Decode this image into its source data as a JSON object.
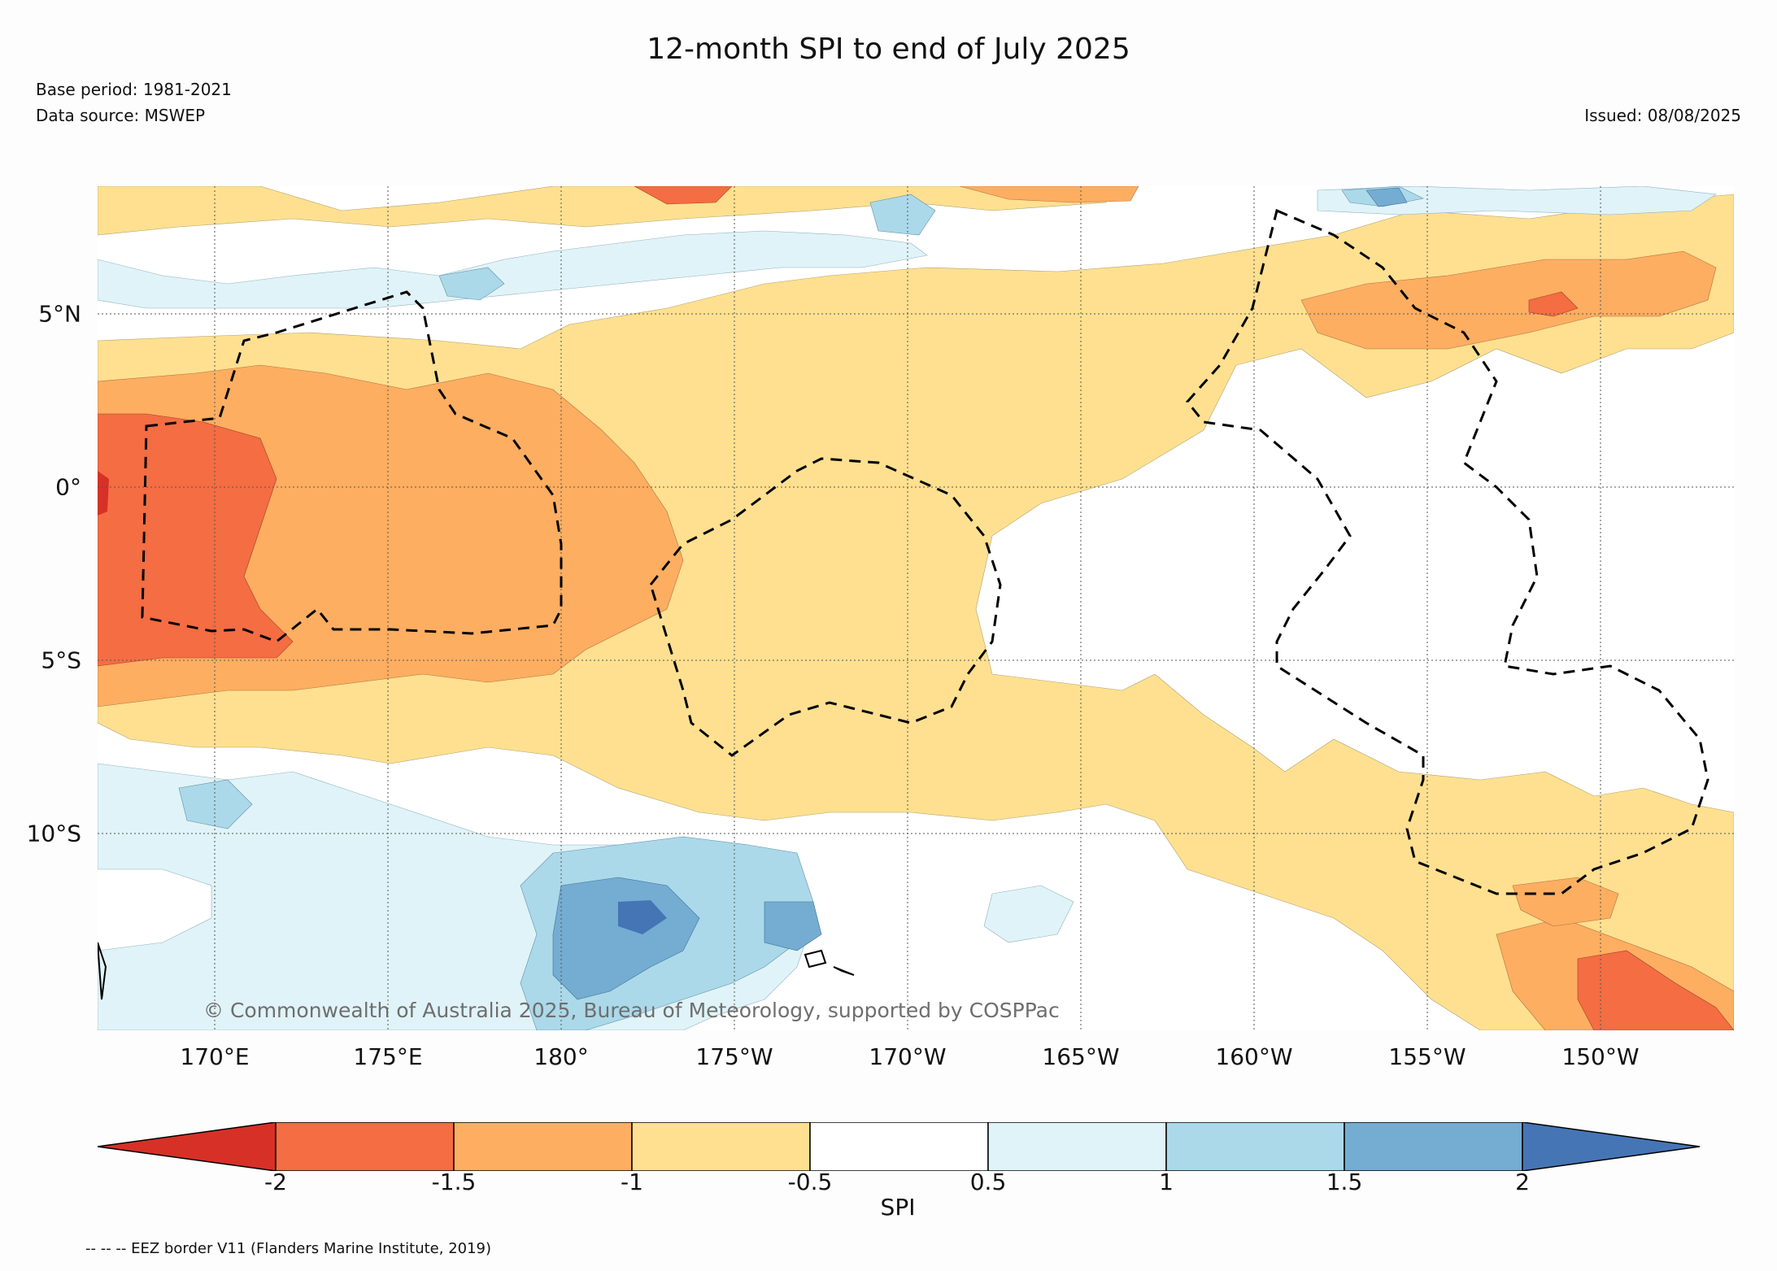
{
  "title": "12-month SPI to end of July 2025",
  "base_period": "Base period: 1981-2021",
  "data_source": "Data source: MSWEP",
  "issued": "Issued: 08/08/2025",
  "copyright": "© Commonwealth of Australia 2025, Bureau of Meteorology, supported by COSPPac",
  "footnote": "-- -- -- EEZ border V11 (Flanders Marine Institute, 2019)",
  "map": {
    "lon_ticks": [
      "170°E",
      "175°E",
      "180°",
      "175°W",
      "170°W",
      "165°W",
      "160°W",
      "155°W",
      "150°W"
    ],
    "lat_ticks": [
      "5°N",
      "0°",
      "5°S",
      "10°S"
    ]
  },
  "colorbar": {
    "title": "SPI",
    "tick_labels": [
      "-2",
      "-1.5",
      "-1",
      "-0.5",
      "0.5",
      "1",
      "1.5",
      "2"
    ],
    "colors": {
      "lt_-2": "#d73027",
      "-2_-1.5": "#f46d43",
      "-1.5_-1": "#fdae61",
      "-1_-0.5": "#fee090",
      "-0.5_0.5": "#ffffff",
      "0.5_1": "#e0f3f8",
      "1_1.5": "#abd9e9",
      "1.5_2": "#74add1",
      "gt_2": "#4575b4"
    }
  }
}
